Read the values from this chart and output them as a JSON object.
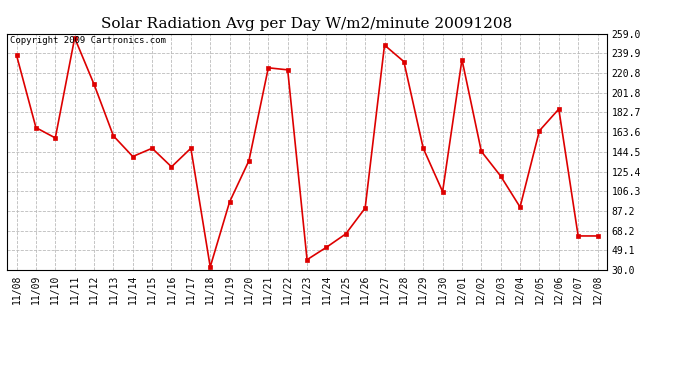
{
  "title": "Solar Radiation Avg per Day W/m2/minute 20091208",
  "copyright": "Copyright 2009 Cartronics.com",
  "dates": [
    "11/08",
    "11/09",
    "11/10",
    "11/11",
    "11/12",
    "11/13",
    "11/14",
    "11/15",
    "11/16",
    "11/17",
    "11/18",
    "11/19",
    "11/20",
    "11/21",
    "11/22",
    "11/23",
    "11/24",
    "11/25",
    "11/26",
    "11/27",
    "11/28",
    "11/29",
    "11/30",
    "12/01",
    "12/02",
    "12/03",
    "12/04",
    "12/05",
    "12/06",
    "12/07",
    "12/08"
  ],
  "values": [
    238.0,
    168.0,
    158.0,
    255.0,
    210.0,
    160.0,
    140.0,
    148.0,
    130.0,
    148.0,
    33.0,
    96.0,
    136.0,
    226.0,
    224.0,
    40.0,
    52.0,
    65.0,
    90.0,
    248.0,
    232.0,
    148.0,
    106.0,
    234.0,
    145.0,
    121.0,
    91.0,
    165.0,
    186.0,
    63.0,
    63.0
  ],
  "ylim": [
    30.0,
    259.0
  ],
  "yticks": [
    30.0,
    49.1,
    68.2,
    87.2,
    106.3,
    125.4,
    144.5,
    163.6,
    182.7,
    201.8,
    220.8,
    239.9,
    259.0
  ],
  "line_color": "#dd0000",
  "marker": "s",
  "marker_size": 3,
  "bg_color": "#ffffff",
  "grid_color": "#bbbbbb",
  "title_fontsize": 11,
  "copyright_fontsize": 6.5,
  "tick_fontsize": 7,
  "ytick_fontsize": 7
}
